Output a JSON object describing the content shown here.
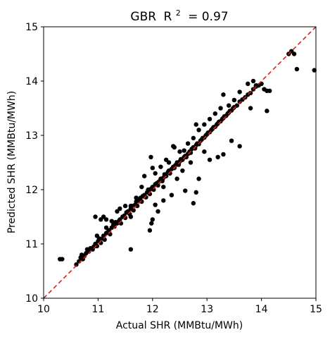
{
  "chart_data": {
    "type": "scatter",
    "title": {
      "model": "GBR",
      "metric_base": "R",
      "metric_exponent": "2",
      "metric_value": "= 0.97"
    },
    "xlabel": "Actual SHR (MMBtu/MWh)",
    "ylabel": "Predicted SHR (MMBtu/MWh)",
    "xlim": [
      10,
      15
    ],
    "ylim": [
      10,
      15
    ],
    "xticks": [
      "10",
      "11",
      "12",
      "13",
      "14",
      "15"
    ],
    "yticks": [
      "10",
      "11",
      "12",
      "13",
      "14",
      "15"
    ],
    "grid": false,
    "reference_line": {
      "style": "dashed",
      "color": "#e41a1c",
      "from": [
        10,
        10
      ],
      "to": [
        15,
        15
      ]
    },
    "marker_color": "#000000",
    "points": [
      [
        10.3,
        10.72
      ],
      [
        10.34,
        10.72
      ],
      [
        10.6,
        10.62
      ],
      [
        10.65,
        10.68
      ],
      [
        10.68,
        10.75
      ],
      [
        10.7,
        10.8
      ],
      [
        10.72,
        10.72
      ],
      [
        10.75,
        10.78
      ],
      [
        10.78,
        10.83
      ],
      [
        10.8,
        10.9
      ],
      [
        10.83,
        10.86
      ],
      [
        10.86,
        10.92
      ],
      [
        10.9,
        10.9
      ],
      [
        10.92,
        10.95
      ],
      [
        10.95,
        11.0
      ],
      [
        10.98,
        10.96
      ],
      [
        11.0,
        11.05
      ],
      [
        11.02,
        11.1
      ],
      [
        11.05,
        11.02
      ],
      [
        11.08,
        11.1
      ],
      [
        11.1,
        11.15
      ],
      [
        11.12,
        11.08
      ],
      [
        11.15,
        11.2
      ],
      [
        11.18,
        11.22
      ],
      [
        11.2,
        11.25
      ],
      [
        11.22,
        11.18
      ],
      [
        11.25,
        11.3
      ],
      [
        11.28,
        11.35
      ],
      [
        11.3,
        11.32
      ],
      [
        11.32,
        11.4
      ],
      [
        11.35,
        11.38
      ],
      [
        11.38,
        11.42
      ],
      [
        11.4,
        11.45
      ],
      [
        11.42,
        11.38
      ],
      [
        11.45,
        11.5
      ],
      [
        11.48,
        11.52
      ],
      [
        11.5,
        11.48
      ],
      [
        11.52,
        11.58
      ],
      [
        11.55,
        11.6
      ],
      [
        11.58,
        11.55
      ],
      [
        11.6,
        11.65
      ],
      [
        11.62,
        11.7
      ],
      [
        11.65,
        11.62
      ],
      [
        11.68,
        11.72
      ],
      [
        11.7,
        11.78
      ],
      [
        11.72,
        11.7
      ],
      [
        11.75,
        11.8
      ],
      [
        11.78,
        11.85
      ],
      [
        11.8,
        11.78
      ],
      [
        11.82,
        11.88
      ],
      [
        11.85,
        11.9
      ],
      [
        11.88,
        11.86
      ],
      [
        11.9,
        11.95
      ],
      [
        11.92,
        12.0
      ],
      [
        11.95,
        11.92
      ],
      [
        11.98,
        12.02
      ],
      [
        12.0,
        12.05
      ],
      [
        12.02,
        12.0
      ],
      [
        12.05,
        12.1
      ],
      [
        12.08,
        12.12
      ],
      [
        12.1,
        12.08
      ],
      [
        12.12,
        12.15
      ],
      [
        12.15,
        12.2
      ],
      [
        12.18,
        12.16
      ],
      [
        12.2,
        12.22
      ],
      [
        12.22,
        12.28
      ],
      [
        12.25,
        12.25
      ],
      [
        12.28,
        12.32
      ],
      [
        12.3,
        12.35
      ],
      [
        12.32,
        12.3
      ],
      [
        12.35,
        12.38
      ],
      [
        12.38,
        12.42
      ],
      [
        12.4,
        12.4
      ],
      [
        12.42,
        12.45
      ],
      [
        12.45,
        12.5
      ],
      [
        12.48,
        12.46
      ],
      [
        12.5,
        12.52
      ],
      [
        12.52,
        12.56
      ],
      [
        12.55,
        12.55
      ],
      [
        12.58,
        12.6
      ],
      [
        12.6,
        12.62
      ],
      [
        12.62,
        12.6
      ],
      [
        12.65,
        12.66
      ],
      [
        12.68,
        12.7
      ],
      [
        12.7,
        12.68
      ],
      [
        12.72,
        12.75
      ],
      [
        12.75,
        12.78
      ],
      [
        12.78,
        12.76
      ],
      [
        12.8,
        12.82
      ],
      [
        12.82,
        12.85
      ],
      [
        12.85,
        12.84
      ],
      [
        12.88,
        12.9
      ],
      [
        12.9,
        12.92
      ],
      [
        12.92,
        12.95
      ],
      [
        12.95,
        12.96
      ],
      [
        12.98,
        13.0
      ],
      [
        13.0,
        13.02
      ],
      [
        13.02,
        13.05
      ],
      [
        13.05,
        13.06
      ],
      [
        13.08,
        13.1
      ],
      [
        13.1,
        13.12
      ],
      [
        13.12,
        13.15
      ],
      [
        13.15,
        13.16
      ],
      [
        13.18,
        13.2
      ],
      [
        13.2,
        13.22
      ],
      [
        13.22,
        13.25
      ],
      [
        13.25,
        13.26
      ],
      [
        13.28,
        13.3
      ],
      [
        13.3,
        13.32
      ],
      [
        13.32,
        13.35
      ],
      [
        13.35,
        13.36
      ],
      [
        13.38,
        13.4
      ],
      [
        13.4,
        13.42
      ],
      [
        13.42,
        13.45
      ],
      [
        13.45,
        13.46
      ],
      [
        13.48,
        13.5
      ],
      [
        13.5,
        13.52
      ],
      [
        13.55,
        13.55
      ],
      [
        13.6,
        13.62
      ],
      [
        13.65,
        13.66
      ],
      [
        13.7,
        13.7
      ],
      [
        13.75,
        13.75
      ],
      [
        13.8,
        13.78
      ],
      [
        13.85,
        13.85
      ],
      [
        13.9,
        13.9
      ],
      [
        13.95,
        13.92
      ],
      [
        14.0,
        13.95
      ],
      [
        14.05,
        13.85
      ],
      [
        14.1,
        13.82
      ],
      [
        14.15,
        13.82
      ],
      [
        10.95,
        11.5
      ],
      [
        11.05,
        11.45
      ],
      [
        11.1,
        11.5
      ],
      [
        11.15,
        11.45
      ],
      [
        11.25,
        11.42
      ],
      [
        11.35,
        11.6
      ],
      [
        11.4,
        11.65
      ],
      [
        11.5,
        11.7
      ],
      [
        11.6,
        11.7
      ],
      [
        11.7,
        11.85
      ],
      [
        11.8,
        12.05
      ],
      [
        11.85,
        12.25
      ],
      [
        11.95,
        12.0
      ],
      [
        12.0,
        12.4
      ],
      [
        12.05,
        12.3
      ],
      [
        12.15,
        12.42
      ],
      [
        12.25,
        12.55
      ],
      [
        12.3,
        12.5
      ],
      [
        12.4,
        12.78
      ],
      [
        12.5,
        12.7
      ],
      [
        12.58,
        12.72
      ],
      [
        12.65,
        12.85
      ],
      [
        12.75,
        12.95
      ],
      [
        12.85,
        13.1
      ],
      [
        12.95,
        13.2
      ],
      [
        13.05,
        13.3
      ],
      [
        13.15,
        13.4
      ],
      [
        13.25,
        13.5
      ],
      [
        13.3,
        13.75
      ],
      [
        13.4,
        13.55
      ],
      [
        13.5,
        13.65
      ],
      [
        13.6,
        13.8
      ],
      [
        13.75,
        13.95
      ],
      [
        13.85,
        14.0
      ],
      [
        13.9,
        13.92
      ],
      [
        11.6,
        10.9
      ],
      [
        11.95,
        11.25
      ],
      [
        11.98,
        11.38
      ],
      [
        12.0,
        11.45
      ],
      [
        12.05,
        11.72
      ],
      [
        12.1,
        11.6
      ],
      [
        12.2,
        11.8
      ],
      [
        12.35,
        11.9
      ],
      [
        12.6,
        11.98
      ],
      [
        12.75,
        11.75
      ],
      [
        12.8,
        11.95
      ],
      [
        12.85,
        12.2
      ],
      [
        12.95,
        12.7
      ],
      [
        13.05,
        12.55
      ],
      [
        13.2,
        12.6
      ],
      [
        13.3,
        12.65
      ],
      [
        13.45,
        12.9
      ],
      [
        13.6,
        12.8
      ],
      [
        13.8,
        13.5
      ],
      [
        14.1,
        13.45
      ],
      [
        11.97,
        12.6
      ],
      [
        12.38,
        12.8
      ],
      [
        12.8,
        13.2
      ],
      [
        10.98,
        11.15
      ],
      [
        11.15,
        11.3
      ],
      [
        11.6,
        11.5
      ],
      [
        12.2,
        12.05
      ],
      [
        12.45,
        12.2
      ],
      [
        12.55,
        12.35
      ],
      [
        12.7,
        12.5
      ],
      [
        14.5,
        14.5
      ],
      [
        14.55,
        14.55
      ],
      [
        14.6,
        14.5
      ],
      [
        14.65,
        14.22
      ],
      [
        14.97,
        14.2
      ]
    ]
  }
}
